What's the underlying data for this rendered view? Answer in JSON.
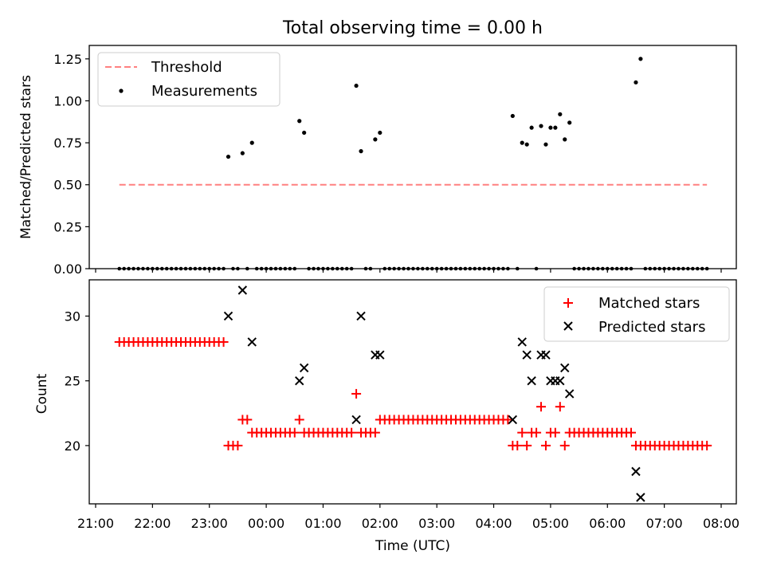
{
  "title": "Total observing time = 0.00 h",
  "xlabel": "Time (UTC)",
  "x_ticks": [
    "21:00",
    "22:00",
    "23:00",
    "00:00",
    "01:00",
    "02:00",
    "03:00",
    "04:00",
    "05:00",
    "06:00",
    "07:00",
    "08:00"
  ],
  "top": {
    "ylabel": "Matched/Predicted stars",
    "y_ticks": [
      "0.00",
      "0.25",
      "0.50",
      "0.75",
      "1.00",
      "1.25"
    ],
    "ylim": [
      0.0,
      1.33
    ],
    "legend": [
      {
        "label": "Threshold",
        "style": "dashed-line",
        "color": "#ff8080"
      },
      {
        "label": "Measurements",
        "style": "dot",
        "color": "#000000"
      }
    ]
  },
  "bottom": {
    "ylabel": "Count",
    "y_ticks": [
      "20",
      "25",
      "30"
    ],
    "ylim": [
      15.5,
      32.8
    ],
    "legend": [
      {
        "label": "Matched stars",
        "style": "plus",
        "color": "#ff0000"
      },
      {
        "label": "Predicted stars",
        "style": "cross",
        "color": "#000000"
      }
    ]
  },
  "chart_data": [
    {
      "type": "scatter",
      "title": "Total observing time = 0.00 h",
      "xlabel": "",
      "ylabel": "Matched/Predicted stars",
      "xlim": [
        "21:00",
        "08:00"
      ],
      "ylim": [
        0.0,
        1.33
      ],
      "threshold": {
        "name": "Threshold",
        "y": 0.5,
        "x_start": "21:25",
        "x_end": "07:45"
      },
      "series": [
        {
          "name": "Measurements",
          "points": [
            [
              "23:20",
              0.667
            ],
            [
              "23:35",
              0.688
            ],
            [
              "23:45",
              0.75
            ],
            [
              "00:35",
              0.88
            ],
            [
              "00:40",
              0.81
            ],
            [
              "01:35",
              1.09
            ],
            [
              "01:40",
              0.7
            ],
            [
              "01:55",
              0.77
            ],
            [
              "02:00",
              0.81
            ],
            [
              "04:20",
              0.91
            ],
            [
              "04:30",
              0.75
            ],
            [
              "04:35",
              0.74
            ],
            [
              "04:40",
              0.84
            ],
            [
              "04:50",
              0.85
            ],
            [
              "04:55",
              0.74
            ],
            [
              "05:00",
              0.84
            ],
            [
              "05:05",
              0.84
            ],
            [
              "05:10",
              0.92
            ],
            [
              "05:15",
              0.77
            ],
            [
              "05:20",
              0.87
            ],
            [
              "06:30",
              1.11
            ],
            [
              "06:35",
              1.25
            ]
          ]
        }
      ]
    },
    {
      "type": "scatter",
      "xlabel": "Time (UTC)",
      "ylabel": "Count",
      "xlim": [
        "21:00",
        "08:00"
      ],
      "ylim": [
        15.5,
        32.8
      ],
      "series": [
        {
          "name": "Matched stars",
          "points": [
            [
              "23:20",
              20
            ],
            [
              "23:25",
              20
            ],
            [
              "23:30",
              20
            ],
            [
              "23:35",
              22
            ],
            [
              "23:40",
              22
            ],
            [
              "00:35",
              22
            ],
            [
              "01:35",
              24
            ],
            [
              "04:20",
              20
            ],
            [
              "04:25",
              20
            ],
            [
              "04:30",
              21
            ],
            [
              "04:35",
              20
            ],
            [
              "04:40",
              21
            ],
            [
              "04:45",
              21
            ],
            [
              "04:50",
              23
            ],
            [
              "04:55",
              20
            ],
            [
              "05:00",
              21
            ],
            [
              "05:05",
              21
            ],
            [
              "05:10",
              23
            ],
            [
              "05:15",
              20
            ],
            [
              "06:30",
              20
            ],
            [
              "06:35",
              20
            ]
          ]
        },
        {
          "name": "Predicted stars",
          "points": [
            [
              "23:20",
              30
            ],
            [
              "23:35",
              32
            ],
            [
              "23:45",
              28
            ],
            [
              "00:35",
              25
            ],
            [
              "00:40",
              26
            ],
            [
              "01:35",
              22
            ],
            [
              "01:40",
              30
            ],
            [
              "01:55",
              27
            ],
            [
              "02:00",
              27
            ],
            [
              "04:20",
              22
            ],
            [
              "04:30",
              28
            ],
            [
              "04:35",
              27
            ],
            [
              "04:40",
              25
            ],
            [
              "04:50",
              27
            ],
            [
              "04:55",
              27
            ],
            [
              "05:00",
              25
            ],
            [
              "05:05",
              25
            ],
            [
              "05:10",
              25
            ],
            [
              "05:15",
              26
            ],
            [
              "05:20",
              24
            ],
            [
              "06:30",
              18
            ],
            [
              "06:35",
              16
            ]
          ]
        }
      ],
      "matched_runs": [
        {
          "from": "21:25",
          "to": "23:15",
          "value": 28
        },
        {
          "from": "23:45",
          "to": "00:30",
          "value": 21
        },
        {
          "from": "00:40",
          "to": "01:30",
          "value": 21
        },
        {
          "from": "01:40",
          "to": "01:55",
          "value": 21
        },
        {
          "from": "02:00",
          "to": "04:15",
          "value": 22
        },
        {
          "from": "05:20",
          "to": "06:25",
          "value": 21
        },
        {
          "from": "06:40",
          "to": "07:45",
          "value": 20
        }
      ]
    }
  ]
}
